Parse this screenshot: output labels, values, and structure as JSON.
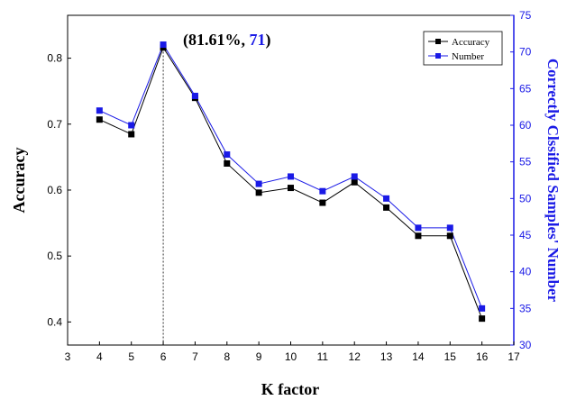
{
  "chart_data": {
    "type": "line",
    "xlabel": "K factor",
    "ylabel": "Accuracy",
    "y2label": "Correctly Clssified Samples' Number",
    "x": [
      4,
      5,
      6,
      7,
      8,
      9,
      10,
      11,
      12,
      13,
      14,
      15,
      16
    ],
    "xlim": [
      3,
      17
    ],
    "xticks": [
      3,
      4,
      5,
      6,
      7,
      8,
      9,
      10,
      11,
      12,
      13,
      14,
      15,
      16,
      17
    ],
    "ylim": [
      0.365,
      0.865
    ],
    "yticks": [
      0.4,
      0.5,
      0.6,
      0.7,
      0.8
    ],
    "y2lim": [
      30,
      75
    ],
    "y2ticks": [
      30,
      35,
      40,
      45,
      50,
      55,
      60,
      65,
      70,
      75
    ],
    "series": [
      {
        "name": "Accuracy",
        "axis": "left",
        "color": "#000000",
        "values": [
          0.7069,
          0.6847,
          0.8161,
          0.7398,
          0.6403,
          0.5961,
          0.6033,
          0.5808,
          0.6119,
          0.5735,
          0.5306,
          0.5306,
          0.4051
        ]
      },
      {
        "name": "Number",
        "axis": "right",
        "color": "#1a1ae6",
        "values": [
          62,
          60,
          71,
          64,
          56,
          52,
          53,
          51,
          53,
          50,
          46,
          46,
          35
        ]
      }
    ],
    "annotation": {
      "x": 6,
      "prefix": "(81.61%, ",
      "highlight": "71",
      "suffix": ")"
    },
    "legend_position": "top-right",
    "grid": false
  }
}
